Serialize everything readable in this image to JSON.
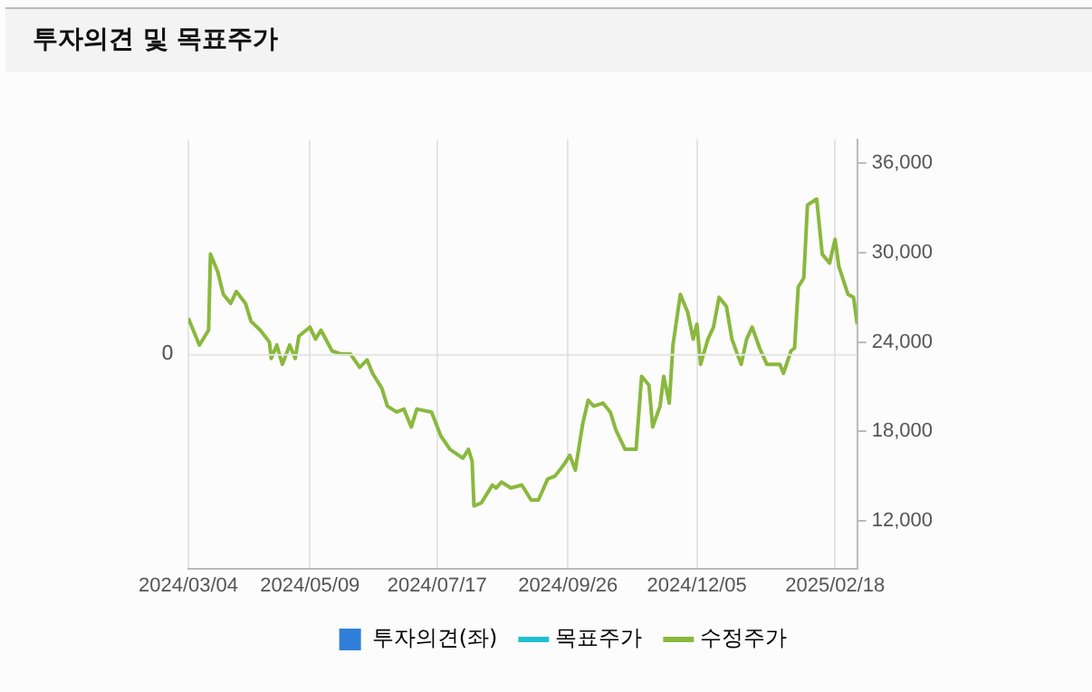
{
  "chart_data": {
    "type": "line",
    "title": "투자의견 및 목표주가",
    "annotations": [
      "0"
    ],
    "xlim": [
      "2024-03-04",
      "2025-03-02"
    ],
    "xticks": [
      {
        "value": "2024-03-04",
        "label": "2024/03/04"
      },
      {
        "value": "2024-05-09",
        "label": "2024/05/09"
      },
      {
        "value": "2024-07-17",
        "label": "2024/07/17"
      },
      {
        "value": "2024-09-26",
        "label": "2024/09/26"
      },
      {
        "value": "2024-12-05",
        "label": "2024/12/05"
      },
      {
        "value": "2025-02-18",
        "label": "2025/02/18"
      }
    ],
    "y2lim": [
      8800,
      37600
    ],
    "y2ticks": [
      {
        "value": 12000,
        "label": "12,000"
      },
      {
        "value": 18000,
        "label": "18,000"
      },
      {
        "value": 24000,
        "label": "24,000"
      },
      {
        "value": 30000,
        "label": "30,000"
      },
      {
        "value": 36000,
        "label": "36,000"
      }
    ],
    "grid": "x",
    "legend": "bottom",
    "line_style": "solid",
    "series": [
      {
        "name": "투자의견(좌)",
        "type": "bar",
        "color": "#2f7fd8"
      },
      {
        "name": "목표주가",
        "type": "line",
        "axis": "y2",
        "color": "#22bfd0"
      },
      {
        "name": "수정주가",
        "axis": "y2",
        "color": "#8ab83e",
        "x": [
          "2024-03-04",
          "2024-03-06",
          "2024-03-10",
          "2024-03-14",
          "2024-03-15",
          "2024-03-16",
          "2024-03-20",
          "2024-03-23",
          "2024-03-27",
          "2024-03-30",
          "2024-04-04",
          "2024-04-07",
          "2024-04-12",
          "2024-04-17",
          "2024-04-18",
          "2024-04-21",
          "2024-04-24",
          "2024-04-28",
          "2024-05-01",
          "2024-05-03",
          "2024-05-09",
          "2024-05-12",
          "2024-05-15",
          "2024-05-21",
          "2024-05-26",
          "2024-05-31",
          "2024-06-05",
          "2024-06-09",
          "2024-06-12",
          "2024-06-17",
          "2024-06-20",
          "2024-06-25",
          "2024-06-29",
          "2024-07-03",
          "2024-07-06",
          "2024-07-14",
          "2024-07-19",
          "2024-07-24",
          "2024-07-31",
          "2024-08-03",
          "2024-08-05",
          "2024-08-06",
          "2024-08-10",
          "2024-08-13",
          "2024-08-16",
          "2024-08-18",
          "2024-08-21",
          "2024-08-26",
          "2024-09-01",
          "2024-09-06",
          "2024-09-10",
          "2024-09-15",
          "2024-09-19",
          "2024-09-24",
          "2024-09-27",
          "2024-09-30",
          "2024-10-04",
          "2024-10-07",
          "2024-10-10",
          "2024-10-15",
          "2024-10-19",
          "2024-10-22",
          "2024-10-27",
          "2024-11-02",
          "2024-11-05",
          "2024-11-09",
          "2024-11-11",
          "2024-11-15",
          "2024-11-17",
          "2024-11-20",
          "2024-11-22",
          "2024-11-26",
          "2024-11-30",
          "2024-12-03",
          "2024-12-05",
          "2024-12-07",
          "2024-12-11",
          "2024-12-14",
          "2024-12-17",
          "2024-12-21",
          "2024-12-24",
          "2024-12-29",
          "2025-01-01",
          "2025-01-04",
          "2025-01-08",
          "2025-01-12",
          "2025-01-19",
          "2025-01-21",
          "2025-01-25",
          "2025-01-27",
          "2025-01-29",
          "2025-02-01",
          "2025-02-03",
          "2025-02-08",
          "2025-02-11",
          "2025-02-15",
          "2025-02-18",
          "2025-02-20",
          "2025-02-25",
          "2025-02-28",
          "2025-03-02"
        ],
        "values": [
          25600,
          25000,
          23800,
          24600,
          24800,
          29900,
          28700,
          27200,
          26600,
          27400,
          26600,
          25400,
          24800,
          24000,
          22900,
          23800,
          22500,
          23800,
          22900,
          24400,
          25000,
          24200,
          24800,
          23400,
          23200,
          23200,
          22300,
          22800,
          21900,
          20900,
          19700,
          19300,
          19500,
          18300,
          19500,
          19300,
          17700,
          16800,
          16200,
          16800,
          16000,
          13000,
          13200,
          13800,
          14400,
          14200,
          14600,
          14200,
          14400,
          13400,
          13400,
          14800,
          15000,
          15800,
          16400,
          15400,
          18500,
          20100,
          19700,
          19900,
          19300,
          18100,
          16800,
          16800,
          21700,
          21100,
          18300,
          19700,
          21700,
          19900,
          23800,
          27200,
          26000,
          24200,
          25200,
          22500,
          24200,
          25000,
          27000,
          26400,
          24200,
          22500,
          24200,
          25000,
          23600,
          22500,
          22500,
          21900,
          23400,
          23600,
          27700,
          28300,
          33200,
          33600,
          29900,
          29300,
          30900,
          29100,
          27200,
          27000,
          25200
        ]
      }
    ]
  }
}
